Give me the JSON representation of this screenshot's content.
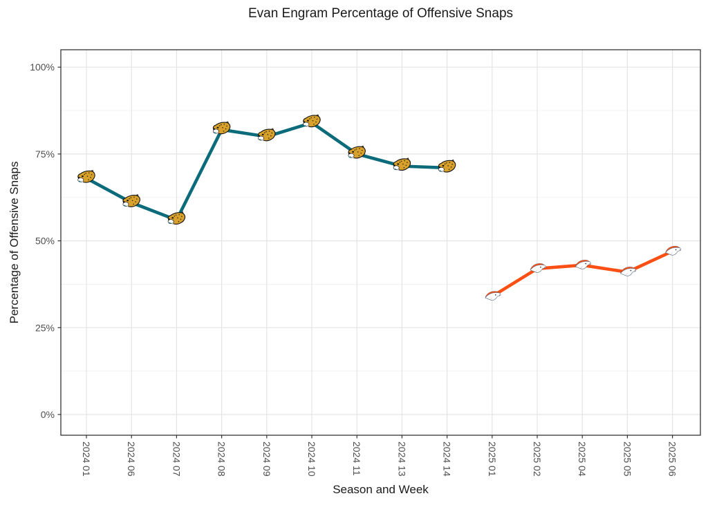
{
  "chart_data": {
    "type": "line",
    "title": "Evan Engram Percentage of Offensive Snaps",
    "xlabel": "Season and Week",
    "ylabel": "Percentage of Offensive Snaps",
    "x_tick_labels": [
      "2024 01",
      "2024 06",
      "2024 07",
      "2024 08",
      "2024 09",
      "2024 10",
      "2024 11",
      "2024 13",
      "2024 14",
      "2025 01",
      "2025 02",
      "2025 04",
      "2025 05",
      "2025 06"
    ],
    "y_ticks": [
      {
        "label": "0%",
        "value": 0
      },
      {
        "label": "25%",
        "value": 25
      },
      {
        "label": "50%",
        "value": 50
      },
      {
        "label": "75%",
        "value": 75
      },
      {
        "label": "100%",
        "value": 100
      }
    ],
    "y_minor_values": [
      12.5,
      37.5,
      62.5,
      87.5
    ],
    "ylim": [
      -6,
      105
    ],
    "grid": true,
    "legend_position": "none",
    "series": [
      {
        "team": "Jaguars",
        "marker": "jaguars-logo",
        "color": "#0b6b7a",
        "points": [
          {
            "x": "2024 01",
            "y": 68
          },
          {
            "x": "2024 06",
            "y": 61
          },
          {
            "x": "2024 07",
            "y": 56
          },
          {
            "x": "2024 08",
            "y": 82
          },
          {
            "x": "2024 09",
            "y": 80
          },
          {
            "x": "2024 10",
            "y": 84
          },
          {
            "x": "2024 11",
            "y": 75
          },
          {
            "x": "2024 13",
            "y": 71.5
          },
          {
            "x": "2024 14",
            "y": 71
          }
        ]
      },
      {
        "team": "Broncos",
        "marker": "broncos-logo",
        "color": "#fb4f14",
        "points": [
          {
            "x": "2025 01",
            "y": 34
          },
          {
            "x": "2025 02",
            "y": 42
          },
          {
            "x": "2025 04",
            "y": 43
          },
          {
            "x": "2025 05",
            "y": 41
          },
          {
            "x": "2025 06",
            "y": 47
          }
        ]
      }
    ],
    "colors": {
      "jaguars_teal": "#0b6b7a",
      "broncos_orange": "#fb4f14",
      "grid_major": "#e4e4e4",
      "grid_minor": "#f2f2f2",
      "panel_border": "#333333",
      "axis_text": "#4d4d4d",
      "title_text": "#1a1a1a"
    }
  }
}
